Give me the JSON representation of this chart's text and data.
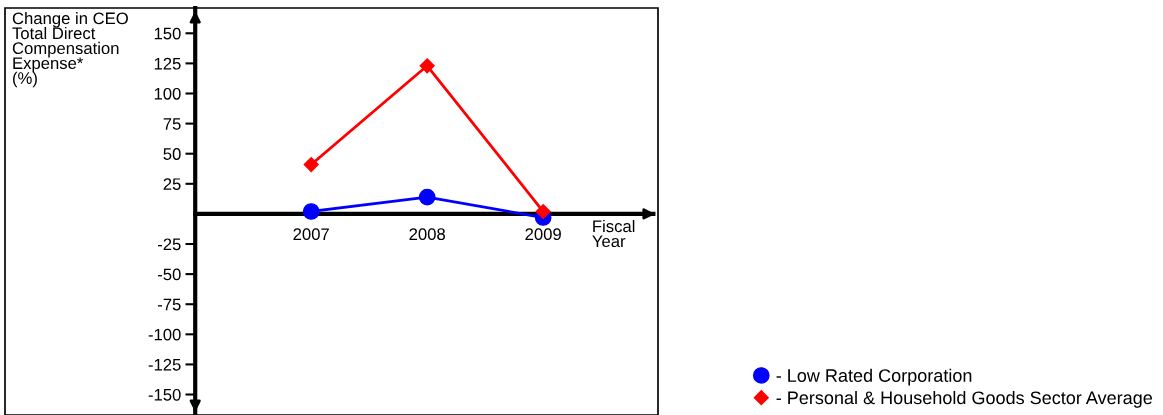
{
  "chart_data": {
    "type": "line",
    "ylabel": "Change in CEO\nTotal Direct\nCompensation\nExpense*\n(%)",
    "xlabel": "Fiscal\nYear",
    "categories": [
      "2007",
      "2008",
      "2009"
    ],
    "series": [
      {
        "name": "- Low Rated Corporation",
        "color": "#0000ff",
        "marker": "circle",
        "values": [
          2,
          14,
          -3
        ]
      },
      {
        "name": "- Personal & Household Goods Sector Average",
        "color": "#ff0000",
        "marker": "diamond",
        "values": [
          41,
          123,
          2
        ]
      }
    ],
    "ylim": [
      -167,
      171
    ],
    "yticks": [
      -150,
      -125,
      -100,
      -75,
      -50,
      -25,
      25,
      50,
      75,
      100,
      125,
      150
    ],
    "grid": false,
    "legend": "bottom right",
    "line_style": "solid"
  }
}
